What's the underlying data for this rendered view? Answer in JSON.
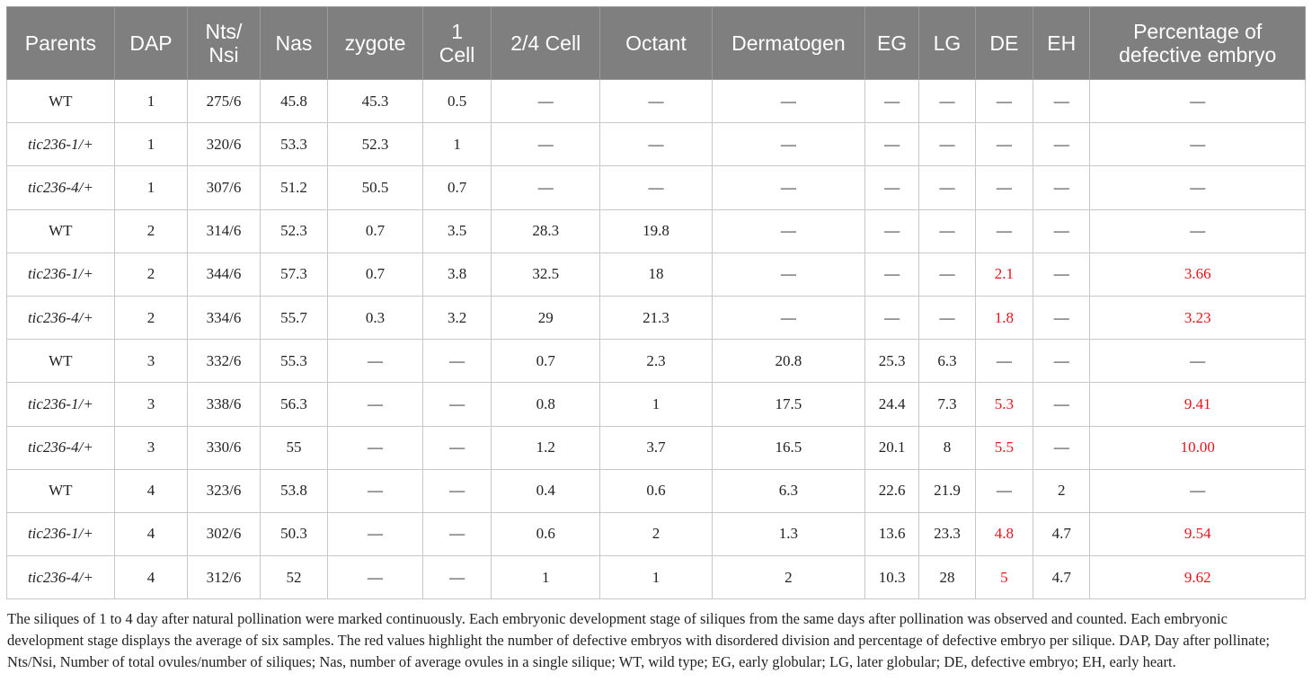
{
  "table": {
    "headers": [
      "Parents",
      "DAP",
      "Nts/\nNsi",
      "Nas",
      "zygote",
      "1\nCell",
      "2/4 Cell",
      "Octant",
      "Dermatogen",
      "EG",
      "LG",
      "DE",
      "EH",
      "Percentage of\ndefective embryo"
    ],
    "rows": [
      [
        "WT",
        "1",
        "275/6",
        "45.8",
        "45.3",
        "0.5",
        "—",
        "—",
        "—",
        "—",
        "—",
        "—",
        "—",
        "—"
      ],
      [
        "tic236-1/+",
        "1",
        "320/6",
        "53.3",
        "52.3",
        "1",
        "—",
        "—",
        "—",
        "—",
        "—",
        "—",
        "—",
        "—"
      ],
      [
        "tic236-4/+",
        "1",
        "307/6",
        "51.2",
        "50.5",
        "0.7",
        "—",
        "—",
        "—",
        "—",
        "—",
        "—",
        "—",
        "—"
      ],
      [
        "WT",
        "2",
        "314/6",
        "52.3",
        "0.7",
        "3.5",
        "28.3",
        "19.8",
        "—",
        "—",
        "—",
        "—",
        "—",
        "—"
      ],
      [
        "tic236-1/+",
        "2",
        "344/6",
        "57.3",
        "0.7",
        "3.8",
        "32.5",
        "18",
        "—",
        "—",
        "—",
        "2.1",
        "—",
        "3.66"
      ],
      [
        "tic236-4/+",
        "2",
        "334/6",
        "55.7",
        "0.3",
        "3.2",
        "29",
        "21.3",
        "—",
        "—",
        "—",
        "1.8",
        "—",
        "3.23"
      ],
      [
        "WT",
        "3",
        "332/6",
        "55.3",
        "—",
        "—",
        "0.7",
        "2.3",
        "20.8",
        "25.3",
        "6.3",
        "—",
        "—",
        "—"
      ],
      [
        "tic236-1/+",
        "3",
        "338/6",
        "56.3",
        "—",
        "—",
        "0.8",
        "1",
        "17.5",
        "24.4",
        "7.3",
        "5.3",
        "—",
        "9.41"
      ],
      [
        "tic236-4/+",
        "3",
        "330/6",
        "55",
        "—",
        "—",
        "1.2",
        "3.7",
        "16.5",
        "20.1",
        "8",
        "5.5",
        "—",
        "10.00"
      ],
      [
        "WT",
        "4",
        "323/6",
        "53.8",
        "—",
        "—",
        "0.4",
        "0.6",
        "6.3",
        "22.6",
        "21.9",
        "—",
        "2",
        "—"
      ],
      [
        "tic236-1/+",
        "4",
        "302/6",
        "50.3",
        "—",
        "—",
        "0.6",
        "2",
        "1.3",
        "13.6",
        "23.3",
        "4.8",
        "4.7",
        "9.54"
      ],
      [
        "tic236-4/+",
        "4",
        "312/6",
        "52",
        "—",
        "—",
        "1",
        "1",
        "2",
        "10.3",
        "28",
        "5",
        "4.7",
        "9.62"
      ]
    ]
  },
  "colors": {
    "header_bg": "#7f7f7f",
    "header_text": "#ffffff",
    "highlight": "#e8141b",
    "grid": "#c8c8c8"
  },
  "footnote": "The siliques of 1 to 4 day after natural pollination were marked continuously. Each embryonic development stage of siliques from the same days after pollination was observed and counted. Each embryonic development stage displays the average of six samples. The red values highlight the number of defective embryos with disordered division and percentage of defective embryo per silique. DAP, Day after pollinate; Nts/Nsi, Number of total ovules/number of siliques; Nas, number of average ovules in a single silique; WT, wild type; EG, early globular; LG, later globular; DE, defective embryo; EH, early heart."
}
